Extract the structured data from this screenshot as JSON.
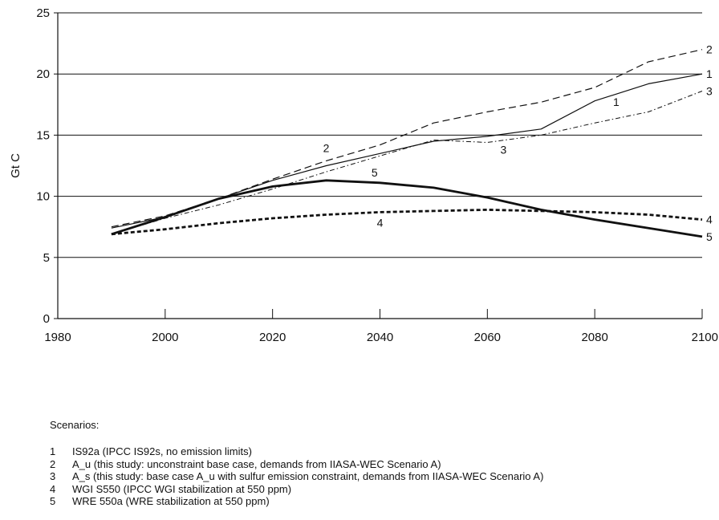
{
  "chart_data": {
    "type": "line",
    "title": "",
    "xlabel": "",
    "ylabel": "Gt C",
    "xlim": [
      1980,
      2100
    ],
    "ylim": [
      0,
      25
    ],
    "xticks": [
      "1980",
      "2000",
      "2020",
      "2040",
      "2060",
      "2080",
      "2100"
    ],
    "yticks": [
      "0",
      "5",
      "10",
      "15",
      "20",
      "25"
    ],
    "grid": "horizontal",
    "legend": "bottom",
    "series": [
      {
        "name": "IS92a",
        "key": "1",
        "style": "solid-thin",
        "x": [
          1990,
          2000,
          2010,
          2020,
          2030,
          2040,
          2050,
          2060,
          2070,
          2080,
          2090,
          2100
        ],
        "y": [
          7.4,
          8.3,
          9.8,
          11.3,
          12.5,
          13.5,
          14.5,
          14.9,
          15.5,
          17.8,
          19.2,
          20.0
        ]
      },
      {
        "name": "A-u",
        "key": "2",
        "style": "dashed",
        "x": [
          1990,
          2000,
          2010,
          2020,
          2030,
          2040,
          2050,
          2060,
          2070,
          2080,
          2090,
          2100
        ],
        "y": [
          7.5,
          8.4,
          9.8,
          11.4,
          12.9,
          14.2,
          16.0,
          16.9,
          17.7,
          18.9,
          21.0,
          22.0
        ]
      },
      {
        "name": "A-s",
        "key": "3",
        "style": "dash-dot",
        "x": [
          1990,
          2000,
          2010,
          2020,
          2030,
          2040,
          2050,
          2060,
          2070,
          2080,
          2090,
          2100
        ],
        "y": [
          6.9,
          8.2,
          9.3,
          10.6,
          12.0,
          13.3,
          14.6,
          14.4,
          15.0,
          16.0,
          16.9,
          18.6
        ]
      },
      {
        "name": "WGIS550",
        "key": "4",
        "style": "heavy-dashed",
        "x": [
          1990,
          2000,
          2010,
          2020,
          2030,
          2040,
          2050,
          2060,
          2070,
          2080,
          2090,
          2100
        ],
        "y": [
          6.9,
          7.3,
          7.8,
          8.2,
          8.5,
          8.7,
          8.8,
          8.9,
          8.8,
          8.7,
          8.5,
          8.1
        ]
      },
      {
        "name": "WRE550a",
        "key": "5",
        "style": "solid-thick",
        "x": [
          1990,
          2000,
          2010,
          2020,
          2030,
          2040,
          2050,
          2060,
          2070,
          2080,
          2090,
          2100
        ],
        "y": [
          6.9,
          8.3,
          9.8,
          10.8,
          11.3,
          11.1,
          10.7,
          9.9,
          8.9,
          8.1,
          7.4,
          6.7
        ]
      }
    ],
    "annotations": [
      {
        "text": "1",
        "x": 2084,
        "y": 17.4
      },
      {
        "text": "2",
        "x": 2030,
        "y": 13.6
      },
      {
        "text": "3",
        "x": 2063,
        "y": 13.5
      },
      {
        "text": "4",
        "x": 2040,
        "y": 7.5
      },
      {
        "text": "5",
        "x": 2039,
        "y": 11.6
      }
    ]
  },
  "scenarios": {
    "heading": "Scenarios:",
    "items": [
      {
        "num": "1",
        "text": "IS92a (IPCC IS92s, no emission limits)"
      },
      {
        "num": "2",
        "text": "A_u (this study: unconstraint base case, demands from IIASA-WEC Scenario A)"
      },
      {
        "num": "3",
        "text": "A_s (this study: base case A_u with sulfur emission constraint, demands from IIASA-WEC Scenario A)"
      },
      {
        "num": "4",
        "text": "WGI S550 (IPCC WGI stabilization at 550 ppm)"
      },
      {
        "num": "5",
        "text": "WRE 550a (WRE stabilization at 550 ppm)"
      }
    ]
  }
}
